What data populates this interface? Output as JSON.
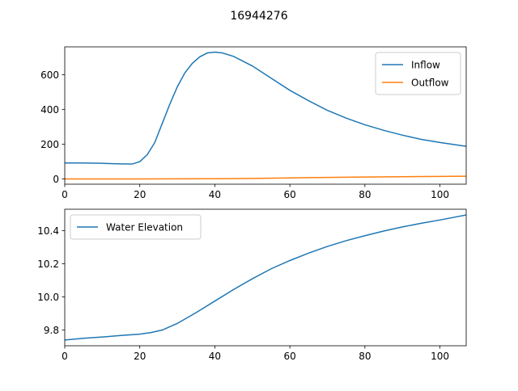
{
  "figure": {
    "title": "16944276"
  },
  "chart_data": [
    {
      "type": "line",
      "xlim": [
        0,
        107
      ],
      "ylim": [
        -30,
        760
      ],
      "xticks": [
        0,
        20,
        40,
        60,
        80,
        100
      ],
      "yticks": [
        0,
        200,
        400,
        600
      ],
      "legend_position": "upper-right",
      "series": [
        {
          "name": "Inflow",
          "color": "#1f77b4",
          "x": [
            0,
            5,
            10,
            15,
            18,
            20,
            22,
            24,
            26,
            28,
            30,
            32,
            34,
            36,
            38,
            40,
            42,
            45,
            50,
            55,
            60,
            65,
            70,
            75,
            80,
            85,
            90,
            95,
            100,
            107
          ],
          "y": [
            92,
            92,
            90,
            87,
            86,
            100,
            140,
            210,
            320,
            430,
            530,
            610,
            665,
            703,
            725,
            730,
            725,
            705,
            650,
            580,
            510,
            450,
            395,
            350,
            312,
            280,
            252,
            228,
            210,
            188
          ]
        },
        {
          "name": "Outflow",
          "color": "#ff7f0e",
          "x": [
            0,
            20,
            40,
            50,
            60,
            70,
            80,
            90,
            100,
            107
          ],
          "y": [
            0,
            0.5,
            1.5,
            3,
            6,
            9,
            11,
            13,
            15,
            16
          ]
        }
      ]
    },
    {
      "type": "line",
      "xlim": [
        0,
        107
      ],
      "ylim": [
        9.705,
        10.53
      ],
      "xticks": [
        0,
        20,
        40,
        60,
        80,
        100
      ],
      "yticks": [
        9.8,
        10.0,
        10.2,
        10.4
      ],
      "legend_position": "upper-left",
      "series": [
        {
          "name": "Water Elevation",
          "color": "#1f77b4",
          "x": [
            0,
            5,
            10,
            15,
            20,
            23,
            26,
            30,
            35,
            40,
            45,
            50,
            55,
            60,
            65,
            70,
            75,
            80,
            85,
            90,
            95,
            100,
            107
          ],
          "y": [
            9.74,
            9.75,
            9.758,
            9.767,
            9.775,
            9.785,
            9.8,
            9.84,
            9.905,
            9.975,
            10.045,
            10.11,
            10.17,
            10.22,
            10.265,
            10.305,
            10.34,
            10.37,
            10.398,
            10.423,
            10.445,
            10.465,
            10.495
          ]
        }
      ]
    }
  ]
}
